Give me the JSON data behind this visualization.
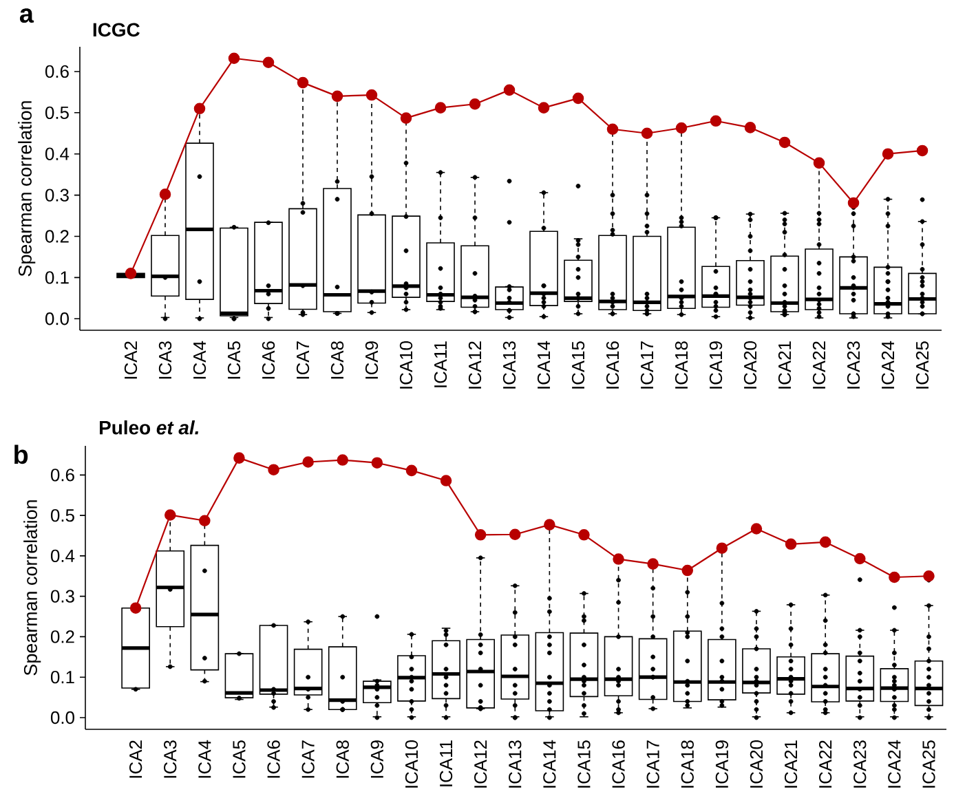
{
  "chart_data": [
    {
      "type": "box",
      "title": "ICGC",
      "ylabel": "Spearman correlation",
      "annotations": [
        "a"
      ],
      "categories": [
        "ICA2",
        "ICA3",
        "ICA4",
        "ICA5",
        "ICA6",
        "ICA7",
        "ICA8",
        "ICA9",
        "ICA10",
        "ICA11",
        "ICA12",
        "ICA13",
        "ICA14",
        "ICA15",
        "ICA16",
        "ICA17",
        "ICA18",
        "ICA19",
        "ICA20",
        "ICA21",
        "ICA22",
        "ICA23",
        "ICA24",
        "ICA25"
      ],
      "ylim": [
        -0.028,
        0.66
      ],
      "yticks": [
        {
          "value": 0,
          "label": "0.0"
        },
        0.1,
        0.2,
        0.3,
        0.4,
        0.5,
        0.6
      ],
      "boxes": [
        {
          "low": 0.1,
          "q1": 0.1,
          "median": 0.105,
          "q3": 0.11,
          "high": 0.11
        },
        {
          "low": 0.003,
          "q1": 0.055,
          "median": 0.103,
          "q3": 0.202,
          "high": 0.302
        },
        {
          "low": 0.002,
          "q1": 0.047,
          "median": 0.217,
          "q3": 0.426,
          "high": 0.51
        },
        {
          "low": 0.003,
          "q1": 0.007,
          "median": 0.013,
          "q3": 0.22,
          "high": 0.222
        },
        {
          "low": 0.003,
          "q1": 0.037,
          "median": 0.068,
          "q3": 0.234,
          "high": 0.234
        },
        {
          "low": 0.01,
          "q1": 0.023,
          "median": 0.082,
          "q3": 0.267,
          "high": 0.573
        },
        {
          "low": 0.013,
          "q1": 0.017,
          "median": 0.058,
          "q3": 0.316,
          "high": 0.54
        },
        {
          "low": 0.015,
          "q1": 0.038,
          "median": 0.067,
          "q3": 0.252,
          "high": 0.543
        },
        {
          "low": 0.022,
          "q1": 0.052,
          "median": 0.079,
          "q3": 0.249,
          "high": 0.487
        },
        {
          "low": 0.022,
          "q1": 0.042,
          "median": 0.058,
          "q3": 0.184,
          "high": 0.355
        },
        {
          "low": 0.017,
          "q1": 0.028,
          "median": 0.052,
          "q3": 0.177,
          "high": 0.343
        },
        {
          "low": 0.003,
          "q1": 0.022,
          "median": 0.038,
          "q3": 0.077,
          "high": 0.078
        },
        {
          "low": 0.005,
          "q1": 0.032,
          "median": 0.062,
          "q3": 0.212,
          "high": 0.306
        },
        {
          "low": 0.012,
          "q1": 0.042,
          "median": 0.05,
          "q3": 0.142,
          "high": 0.194
        },
        {
          "low": 0.012,
          "q1": 0.022,
          "median": 0.042,
          "q3": 0.202,
          "high": 0.46
        },
        {
          "low": 0.012,
          "q1": 0.02,
          "median": 0.04,
          "q3": 0.2,
          "high": 0.45
        },
        {
          "low": 0.01,
          "q1": 0.025,
          "median": 0.054,
          "q3": 0.222,
          "high": 0.463
        },
        {
          "low": 0.005,
          "q1": 0.028,
          "median": 0.055,
          "q3": 0.127,
          "high": 0.245
        },
        {
          "low": 0.002,
          "q1": 0.033,
          "median": 0.052,
          "q3": 0.141,
          "high": 0.254
        },
        {
          "low": 0.01,
          "q1": 0.017,
          "median": 0.038,
          "q3": 0.152,
          "high": 0.256
        },
        {
          "low": 0.002,
          "q1": 0.022,
          "median": 0.047,
          "q3": 0.169,
          "high": 0.378
        },
        {
          "low": 0.002,
          "q1": 0.012,
          "median": 0.075,
          "q3": 0.15,
          "high": 0.281
        },
        {
          "low": 0.002,
          "q1": 0.012,
          "median": 0.036,
          "q3": 0.125,
          "high": 0.29
        },
        {
          "low": 0.012,
          "q1": 0.012,
          "median": 0.048,
          "q3": 0.11,
          "high": 0.236
        }
      ],
      "series": [
        {
          "type": "scatter",
          "color": "#000000",
          "marker": "circle",
          "x": [
            "ICA2",
            "ICA3",
            "ICA3",
            "ICA4",
            "ICA4",
            "ICA4",
            "ICA5",
            "ICA5",
            "ICA5",
            "ICA6",
            "ICA6",
            "ICA6",
            "ICA6",
            "ICA6",
            "ICA7",
            "ICA7",
            "ICA7",
            "ICA7",
            "ICA7",
            "ICA8",
            "ICA8",
            "ICA8",
            "ICA8",
            "ICA8",
            "ICA8",
            "ICA9",
            "ICA9",
            "ICA9",
            "ICA9",
            "ICA9",
            "ICA9",
            "ICA10",
            "ICA10",
            "ICA10",
            "ICA10",
            "ICA10",
            "ICA10",
            "ICA10",
            "ICA10",
            "ICA11",
            "ICA11",
            "ICA11",
            "ICA11",
            "ICA11",
            "ICA11",
            "ICA11",
            "ICA11",
            "ICA11",
            "ICA12",
            "ICA12",
            "ICA12",
            "ICA12",
            "ICA12",
            "ICA12",
            "ICA12",
            "ICA12",
            "ICA12",
            "ICA12",
            "ICA13",
            "ICA13",
            "ICA13",
            "ICA13",
            "ICA13",
            "ICA13",
            "ICA13",
            "ICA13",
            "ICA13",
            "ICA13",
            "ICA14",
            "ICA14",
            "ICA14",
            "ICA14",
            "ICA14",
            "ICA14",
            "ICA14",
            "ICA14",
            "ICA14",
            "ICA15",
            "ICA15",
            "ICA15",
            "ICA15",
            "ICA15",
            "ICA15",
            "ICA15",
            "ICA15",
            "ICA15",
            "ICA15",
            "ICA15",
            "ICA15",
            "ICA16",
            "ICA16",
            "ICA16",
            "ICA16",
            "ICA16",
            "ICA16",
            "ICA16",
            "ICA16",
            "ICA16",
            "ICA16",
            "ICA17",
            "ICA17",
            "ICA17",
            "ICA17",
            "ICA17",
            "ICA17",
            "ICA17",
            "ICA17",
            "ICA17",
            "ICA17",
            "ICA17",
            "ICA18",
            "ICA18",
            "ICA18",
            "ICA18",
            "ICA18",
            "ICA18",
            "ICA18",
            "ICA18",
            "ICA18",
            "ICA19",
            "ICA19",
            "ICA19",
            "ICA19",
            "ICA19",
            "ICA19",
            "ICA19",
            "ICA19",
            "ICA19",
            "ICA19",
            "ICA19",
            "ICA20",
            "ICA20",
            "ICA20",
            "ICA20",
            "ICA20",
            "ICA20",
            "ICA20",
            "ICA20",
            "ICA20",
            "ICA20",
            "ICA20",
            "ICA20",
            "ICA20",
            "ICA21",
            "ICA21",
            "ICA21",
            "ICA21",
            "ICA21",
            "ICA21",
            "ICA21",
            "ICA21",
            "ICA21",
            "ICA21",
            "ICA21",
            "ICA21",
            "ICA21",
            "ICA21",
            "ICA22",
            "ICA22",
            "ICA22",
            "ICA22",
            "ICA22",
            "ICA22",
            "ICA22",
            "ICA22",
            "ICA22",
            "ICA22",
            "ICA22",
            "ICA22",
            "ICA22",
            "ICA23",
            "ICA23",
            "ICA23",
            "ICA23",
            "ICA23",
            "ICA23",
            "ICA23",
            "ICA23",
            "ICA23",
            "ICA23",
            "ICA23",
            "ICA23",
            "ICA23",
            "ICA24",
            "ICA24",
            "ICA24",
            "ICA24",
            "ICA24",
            "ICA24",
            "ICA24",
            "ICA24",
            "ICA24",
            "ICA24",
            "ICA24",
            "ICA24",
            "ICA24",
            "ICA25",
            "ICA25",
            "ICA25",
            "ICA25",
            "ICA25",
            "ICA25",
            "ICA25",
            "ICA25",
            "ICA25",
            "ICA25",
            "ICA25",
            "ICA25",
            "ICA25"
          ],
          "values": [
            null,
            0.1,
            0.0,
            0.345,
            0.09,
            0.0,
            0.222,
            0.0,
            0.0,
            0.233,
            0.08,
            0.06,
            0.025,
            0.0,
            0.28,
            0.258,
            0.08,
            0.015,
            0.01,
            0.333,
            0.29,
            0.077,
            0.013,
            0.013,
            0.013,
            0.345,
            0.255,
            0.065,
            0.065,
            0.04,
            0.015,
            0.378,
            0.248,
            0.165,
            0.085,
            0.075,
            0.06,
            0.04,
            0.022,
            0.355,
            0.245,
            0.122,
            0.075,
            0.06,
            0.05,
            0.04,
            0.03,
            0.025,
            0.343,
            0.245,
            0.11,
            0.055,
            0.05,
            0.045,
            0.03,
            0.017,
            0.017,
            0.017,
            0.334,
            0.234,
            0.078,
            0.07,
            0.05,
            0.04,
            0.02,
            0.02,
            0.02,
            0.003,
            0.306,
            0.22,
            0.08,
            0.08,
            0.06,
            0.05,
            0.04,
            0.03,
            0.005,
            0.322,
            0.19,
            0.18,
            0.15,
            0.12,
            0.1,
            0.06,
            0.05,
            0.05,
            0.05,
            0.03,
            0.012,
            0.3,
            0.255,
            0.215,
            0.205,
            0.06,
            0.05,
            0.04,
            0.03,
            0.012,
            0.012,
            0.3,
            0.255,
            0.225,
            0.21,
            0.06,
            0.05,
            0.04,
            0.03,
            0.02,
            0.012,
            0.012,
            0.245,
            0.235,
            0.225,
            0.09,
            0.07,
            0.05,
            0.04,
            0.03,
            0.01,
            0.245,
            0.245,
            0.245,
            0.115,
            0.075,
            0.06,
            0.06,
            0.04,
            0.03,
            0.02,
            0.005,
            0.254,
            0.24,
            0.2,
            0.165,
            0.12,
            0.09,
            0.07,
            0.06,
            0.05,
            0.04,
            0.03,
            0.015,
            0.002,
            0.256,
            0.24,
            0.23,
            0.21,
            0.155,
            0.12,
            0.08,
            0.06,
            0.04,
            0.03,
            0.02,
            0.015,
            0.01,
            0.01,
            0.256,
            0.24,
            0.23,
            0.18,
            0.135,
            0.11,
            0.075,
            0.06,
            0.045,
            0.035,
            0.025,
            0.015,
            0.005,
            0.27,
            0.255,
            0.225,
            0.15,
            0.14,
            0.1,
            0.08,
            0.075,
            0.06,
            0.045,
            0.012,
            0.012,
            0.005,
            0.29,
            0.255,
            0.225,
            0.125,
            0.11,
            0.09,
            0.09,
            0.07,
            0.05,
            0.04,
            0.03,
            0.012,
            0.005,
            0.289,
            0.236,
            0.18,
            0.12,
            0.1,
            0.09,
            0.08,
            0.06,
            0.05,
            0.04,
            0.03,
            0.012,
            0.012
          ]
        },
        {
          "type": "line",
          "color": "#b80000",
          "marker": "circle",
          "values": [
            0.11,
            0.302,
            0.51,
            0.632,
            0.622,
            0.573,
            0.54,
            0.543,
            0.487,
            0.512,
            0.521,
            0.555,
            0.512,
            0.535,
            0.46,
            0.45,
            0.463,
            0.48,
            0.464,
            0.428,
            0.378,
            0.281,
            0.4,
            0.408
          ]
        }
      ]
    },
    {
      "type": "box",
      "title": "Puleo *et al.*",
      "ylabel": "Spearman correlation",
      "annotations": [
        "b"
      ],
      "categories": [
        "ICA2",
        "ICA3",
        "ICA4",
        "ICA5",
        "ICA6",
        "ICA7",
        "ICA8",
        "ICA9",
        "ICA10",
        "ICA11",
        "ICA12",
        "ICA13",
        "ICA14",
        "ICA15",
        "ICA16",
        "ICA17",
        "ICA18",
        "ICA19",
        "ICA20",
        "ICA21",
        "ICA22",
        "ICA23",
        "ICA24",
        "ICA25"
      ],
      "ylim": [
        -0.029,
        0.672
      ],
      "yticks": [
        {
          "value": 0,
          "label": "0.0"
        },
        0.1,
        0.2,
        0.3,
        0.4,
        0.5,
        0.6
      ],
      "boxes": [
        {
          "low": 0.07,
          "q1": 0.073,
          "median": 0.172,
          "q3": 0.271,
          "high": 0.271
        },
        {
          "low": 0.126,
          "q1": 0.225,
          "median": 0.322,
          "q3": 0.412,
          "high": 0.501
        },
        {
          "low": 0.089,
          "q1": 0.118,
          "median": 0.255,
          "q3": 0.426,
          "high": 0.487
        },
        {
          "low": 0.045,
          "q1": 0.049,
          "median": 0.061,
          "q3": 0.158,
          "high": 0.158
        },
        {
          "low": 0.026,
          "q1": 0.058,
          "median": 0.068,
          "q3": 0.228,
          "high": 0.228
        },
        {
          "low": 0.02,
          "q1": 0.056,
          "median": 0.072,
          "q3": 0.169,
          "high": 0.237
        },
        {
          "low": 0.02,
          "q1": 0.02,
          "median": 0.043,
          "q3": 0.175,
          "high": 0.25
        },
        {
          "low": 0.002,
          "q1": 0.037,
          "median": 0.075,
          "q3": 0.09,
          "high": 0.093
        },
        {
          "low": 0.002,
          "q1": 0.041,
          "median": 0.099,
          "q3": 0.153,
          "high": 0.206
        },
        {
          "low": 0.002,
          "q1": 0.047,
          "median": 0.108,
          "q3": 0.19,
          "high": 0.221
        },
        {
          "low": 0.022,
          "q1": 0.024,
          "median": 0.114,
          "q3": 0.193,
          "high": 0.395
        },
        {
          "low": 0.002,
          "q1": 0.046,
          "median": 0.102,
          "q3": 0.204,
          "high": 0.326
        },
        {
          "low": 0.002,
          "q1": 0.017,
          "median": 0.085,
          "q3": 0.21,
          "high": 0.477
        },
        {
          "low": 0.002,
          "q1": 0.052,
          "median": 0.095,
          "q3": 0.209,
          "high": 0.307
        },
        {
          "low": 0.012,
          "q1": 0.054,
          "median": 0.095,
          "q3": 0.2,
          "high": 0.392
        },
        {
          "low": 0.022,
          "q1": 0.045,
          "median": 0.1,
          "q3": 0.195,
          "high": 0.38
        },
        {
          "low": 0.024,
          "q1": 0.04,
          "median": 0.088,
          "q3": 0.214,
          "high": 0.364
        },
        {
          "low": 0.026,
          "q1": 0.044,
          "median": 0.088,
          "q3": 0.193,
          "high": 0.419
        },
        {
          "low": 0.002,
          "q1": 0.061,
          "median": 0.087,
          "q3": 0.17,
          "high": 0.263
        },
        {
          "low": 0.012,
          "q1": 0.058,
          "median": 0.096,
          "q3": 0.15,
          "high": 0.279
        },
        {
          "low": 0.012,
          "q1": 0.039,
          "median": 0.077,
          "q3": 0.158,
          "high": 0.303
        },
        {
          "low": 0.002,
          "q1": 0.041,
          "median": 0.072,
          "q3": 0.152,
          "high": 0.216
        },
        {
          "low": 0.002,
          "q1": 0.04,
          "median": 0.073,
          "q3": 0.121,
          "high": 0.216
        },
        {
          "low": 0.002,
          "q1": 0.03,
          "median": 0.072,
          "q3": 0.14,
          "high": 0.277
        }
      ],
      "series": [
        {
          "type": "scatter",
          "color": "#000000",
          "marker": "circle",
          "x": [
            "ICA2",
            "ICA3",
            "ICA3",
            "ICA4",
            "ICA4",
            "ICA4",
            "ICA5",
            "ICA5",
            "ICA5",
            "ICA6",
            "ICA6",
            "ICA6",
            "ICA6",
            "ICA6",
            "ICA7",
            "ICA7",
            "ICA7",
            "ICA7",
            "ICA7",
            "ICA8",
            "ICA8",
            "ICA8",
            "ICA8",
            "ICA8",
            "ICA8",
            "ICA8",
            "ICA9",
            "ICA9",
            "ICA9",
            "ICA9",
            "ICA9",
            "ICA9",
            "ICA9",
            "ICA10",
            "ICA10",
            "ICA10",
            "ICA10",
            "ICA10",
            "ICA10",
            "ICA10",
            "ICA10",
            "ICA10",
            "ICA11",
            "ICA11",
            "ICA11",
            "ICA11",
            "ICA11",
            "ICA11",
            "ICA11",
            "ICA11",
            "ICA11",
            "ICA12",
            "ICA12",
            "ICA12",
            "ICA12",
            "ICA12",
            "ICA12",
            "ICA12",
            "ICA12",
            "ICA12",
            "ICA12",
            "ICA13",
            "ICA13",
            "ICA13",
            "ICA13",
            "ICA13",
            "ICA13",
            "ICA13",
            "ICA13",
            "ICA13",
            "ICA13",
            "ICA14",
            "ICA14",
            "ICA14",
            "ICA14",
            "ICA14",
            "ICA14",
            "ICA14",
            "ICA14",
            "ICA14",
            "ICA14",
            "ICA14",
            "ICA15",
            "ICA15",
            "ICA15",
            "ICA15",
            "ICA15",
            "ICA15",
            "ICA15",
            "ICA15",
            "ICA15",
            "ICA15",
            "ICA15",
            "ICA16",
            "ICA16",
            "ICA16",
            "ICA16",
            "ICA16",
            "ICA16",
            "ICA16",
            "ICA16",
            "ICA16",
            "ICA16",
            "ICA17",
            "ICA17",
            "ICA17",
            "ICA17",
            "ICA17",
            "ICA17",
            "ICA17",
            "ICA17",
            "ICA17",
            "ICA18",
            "ICA18",
            "ICA18",
            "ICA18",
            "ICA18",
            "ICA18",
            "ICA18",
            "ICA18",
            "ICA18",
            "ICA18",
            "ICA19",
            "ICA19",
            "ICA19",
            "ICA19",
            "ICA19",
            "ICA19",
            "ICA19",
            "ICA19",
            "ICA19",
            "ICA20",
            "ICA20",
            "ICA20",
            "ICA20",
            "ICA20",
            "ICA20",
            "ICA20",
            "ICA20",
            "ICA20",
            "ICA20",
            "ICA20",
            "ICA20",
            "ICA21",
            "ICA21",
            "ICA21",
            "ICA21",
            "ICA21",
            "ICA21",
            "ICA21",
            "ICA21",
            "ICA21",
            "ICA21",
            "ICA21",
            "ICA22",
            "ICA22",
            "ICA22",
            "ICA22",
            "ICA22",
            "ICA22",
            "ICA22",
            "ICA22",
            "ICA22",
            "ICA22",
            "ICA22",
            "ICA23",
            "ICA23",
            "ICA23",
            "ICA23",
            "ICA23",
            "ICA23",
            "ICA23",
            "ICA23",
            "ICA23",
            "ICA23",
            "ICA23",
            "ICA24",
            "ICA24",
            "ICA24",
            "ICA24",
            "ICA24",
            "ICA24",
            "ICA24",
            "ICA24",
            "ICA24",
            "ICA24",
            "ICA24",
            "ICA24",
            "ICA25",
            "ICA25",
            "ICA25",
            "ICA25",
            "ICA25",
            "ICA25",
            "ICA25",
            "ICA25",
            "ICA25",
            "ICA25",
            "ICA25",
            "ICA25"
          ],
          "values": [
            0.07,
            0.317,
            0.126,
            0.363,
            0.147,
            0.09,
            0.158,
            0.048,
            0.048,
            0.228,
            0.07,
            0.06,
            0.04,
            0.025,
            0.237,
            0.1,
            0.07,
            0.05,
            0.02,
            0.25,
            0.1,
            0.04,
            0.02,
            0.02,
            0.02,
            0.02,
            0.25,
            0.09,
            0.08,
            0.07,
            0.05,
            0.03,
            0.0,
            0.206,
            0.15,
            0.12,
            0.1,
            0.09,
            0.07,
            0.04,
            0.02,
            0.0,
            0.215,
            0.205,
            0.18,
            0.12,
            0.1,
            0.08,
            0.06,
            0.03,
            0.0,
            0.395,
            0.205,
            0.18,
            0.16,
            0.12,
            0.08,
            0.04,
            0.025,
            0.022,
            0.022,
            0.326,
            0.26,
            0.2,
            0.18,
            0.12,
            0.08,
            0.06,
            0.03,
            0.0,
            0.0,
            0.295,
            0.262,
            0.2,
            0.18,
            0.16,
            0.1,
            0.08,
            0.06,
            0.04,
            0.02,
            0.0,
            0.307,
            0.25,
            0.24,
            0.18,
            0.13,
            0.1,
            0.09,
            0.08,
            0.06,
            0.03,
            0.01,
            0.34,
            0.285,
            0.2,
            0.12,
            0.1,
            0.09,
            0.08,
            0.04,
            0.02,
            0.012,
            0.32,
            0.25,
            0.2,
            0.15,
            0.12,
            0.1,
            0.1,
            0.05,
            0.022,
            0.31,
            0.25,
            0.21,
            0.2,
            0.14,
            0.09,
            0.08,
            0.06,
            0.04,
            0.03,
            0.283,
            0.22,
            0.2,
            0.14,
            0.1,
            0.09,
            0.07,
            0.04,
            0.03,
            0.263,
            0.22,
            0.2,
            0.17,
            0.12,
            0.1,
            0.09,
            0.08,
            0.06,
            0.04,
            0.02,
            0.0,
            0.279,
            0.22,
            0.18,
            0.14,
            0.12,
            0.1,
            0.09,
            0.08,
            0.06,
            0.04,
            0.012,
            0.303,
            0.24,
            0.18,
            0.16,
            0.12,
            0.1,
            0.08,
            0.06,
            0.04,
            0.02,
            0.012,
            0.341,
            0.216,
            0.2,
            0.16,
            0.14,
            0.11,
            0.09,
            0.07,
            0.05,
            0.03,
            0.0,
            0.272,
            0.216,
            0.16,
            0.13,
            0.1,
            0.09,
            0.08,
            0.07,
            0.05,
            0.03,
            0.02,
            0.0,
            0.34,
            0.277,
            0.2,
            0.17,
            0.14,
            0.12,
            0.1,
            0.08,
            0.06,
            0.04,
            0.02,
            0.0
          ]
        },
        {
          "type": "line",
          "color": "#b80000",
          "marker": "circle",
          "values": [
            0.271,
            0.501,
            0.487,
            0.642,
            0.613,
            0.632,
            0.637,
            0.63,
            0.611,
            0.586,
            0.452,
            0.453,
            0.477,
            0.452,
            0.392,
            0.38,
            0.364,
            0.419,
            0.467,
            0.429,
            0.434,
            0.393,
            0.347,
            0.35
          ]
        }
      ]
    }
  ]
}
